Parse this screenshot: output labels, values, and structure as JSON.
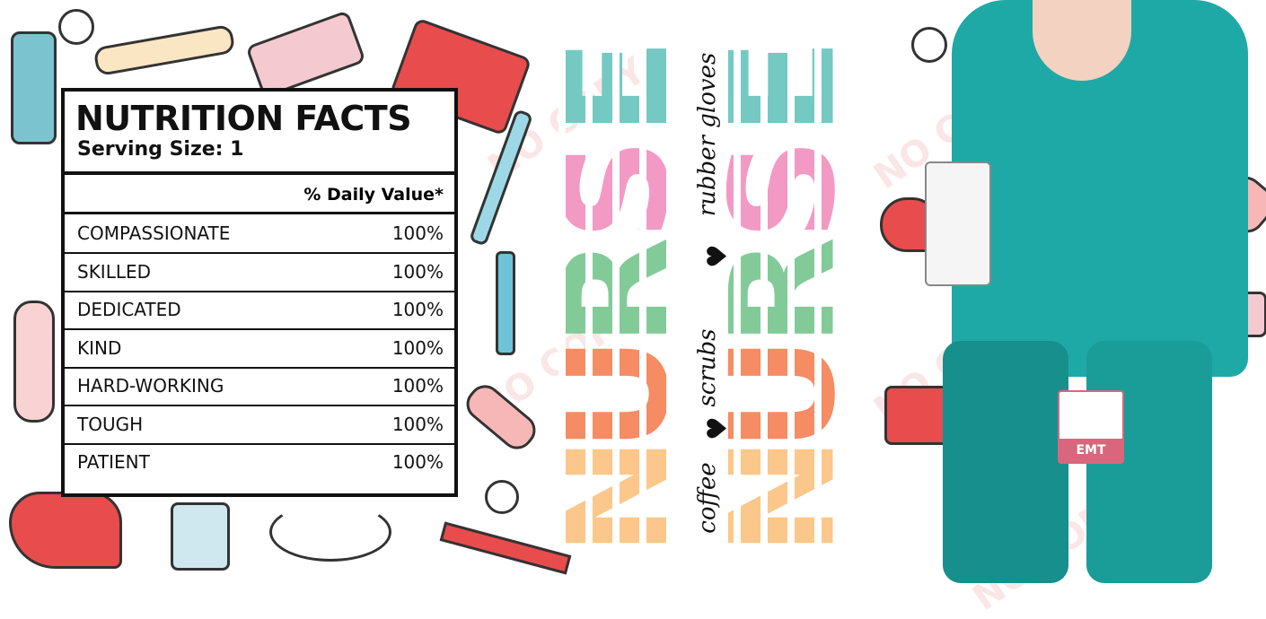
{
  "label": {
    "title": "NUTRITION FACTS",
    "serving": "Serving Size: 1",
    "daily_value_header": "% Daily Value*",
    "rows": [
      {
        "name": "COMPASSIONATE",
        "value": "100%"
      },
      {
        "name": "SKILLED",
        "value": "100%"
      },
      {
        "name": "DEDICATED",
        "value": "100%"
      },
      {
        "name": "KIND",
        "value": "100%"
      },
      {
        "name": "HARD-WORKING",
        "value": "100%"
      },
      {
        "name": "TOUGH",
        "value": "100%"
      },
      {
        "name": "PATIENT",
        "value": "100%"
      }
    ]
  },
  "word": {
    "letters": [
      {
        "char": "E",
        "color": "#74c9c3"
      },
      {
        "char": "S",
        "color": "#f29ac4"
      },
      {
        "char": "R",
        "color": "#82cb98"
      },
      {
        "char": "U",
        "color": "#f58c63"
      },
      {
        "char": "N",
        "color": "#fcc78a"
      }
    ],
    "script": [
      "rubber gloves",
      "scrubs",
      "coffee"
    ]
  },
  "badge": "EMT",
  "watermark": "NO COPY",
  "colors": {
    "scrubs": "#1fa9a6",
    "accent_red": "#e84c4c"
  }
}
